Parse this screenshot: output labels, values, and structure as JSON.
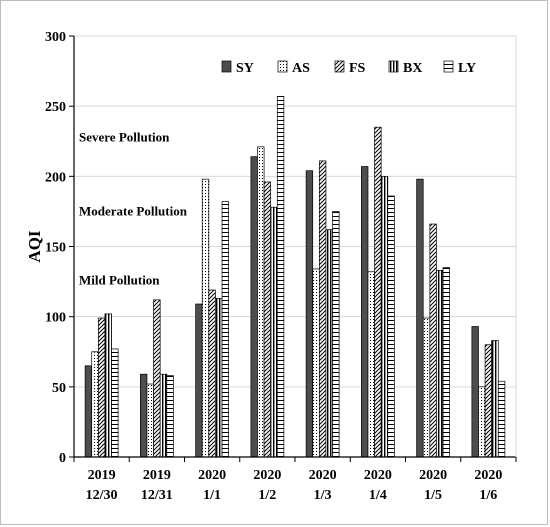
{
  "chart_data": {
    "type": "bar",
    "ylabel": "AQI",
    "xlabel": "",
    "ylim": [
      0,
      300
    ],
    "yticks": [
      0,
      50,
      100,
      150,
      200,
      250,
      300
    ],
    "grid": "horizontal",
    "legend_position": "top-right",
    "categories": [
      {
        "year": "2019",
        "date": "12/30"
      },
      {
        "year": "2019",
        "date": "12/31"
      },
      {
        "year": "2020",
        "date": "1/1"
      },
      {
        "year": "2020",
        "date": "1/2"
      },
      {
        "year": "2020",
        "date": "1/3"
      },
      {
        "year": "2020",
        "date": "1/4"
      },
      {
        "year": "2020",
        "date": "1/5"
      },
      {
        "year": "2020",
        "date": "1/6"
      }
    ],
    "series": [
      {
        "name": "SY",
        "pattern": "solid",
        "values": [
          65,
          59,
          109,
          214,
          204,
          207,
          198,
          93
        ]
      },
      {
        "name": "AS",
        "pattern": "dots",
        "values": [
          75,
          52,
          198,
          221,
          134,
          132,
          99,
          50
        ]
      },
      {
        "name": "FS",
        "pattern": "diagonal",
        "values": [
          99,
          112,
          119,
          196,
          211,
          235,
          166,
          80
        ]
      },
      {
        "name": "BX",
        "pattern": "vertical",
        "values": [
          102,
          59,
          113,
          178,
          162,
          200,
          133,
          83
        ]
      },
      {
        "name": "LY",
        "pattern": "horizontal",
        "values": [
          77,
          58,
          182,
          257,
          175,
          186,
          135,
          54
        ]
      }
    ],
    "annotations": [
      {
        "text": "Severe Pollution",
        "value": 225
      },
      {
        "text": "Moderate Pollution",
        "value": 172
      },
      {
        "text": "Mild Pollution",
        "value": 123
      }
    ]
  }
}
